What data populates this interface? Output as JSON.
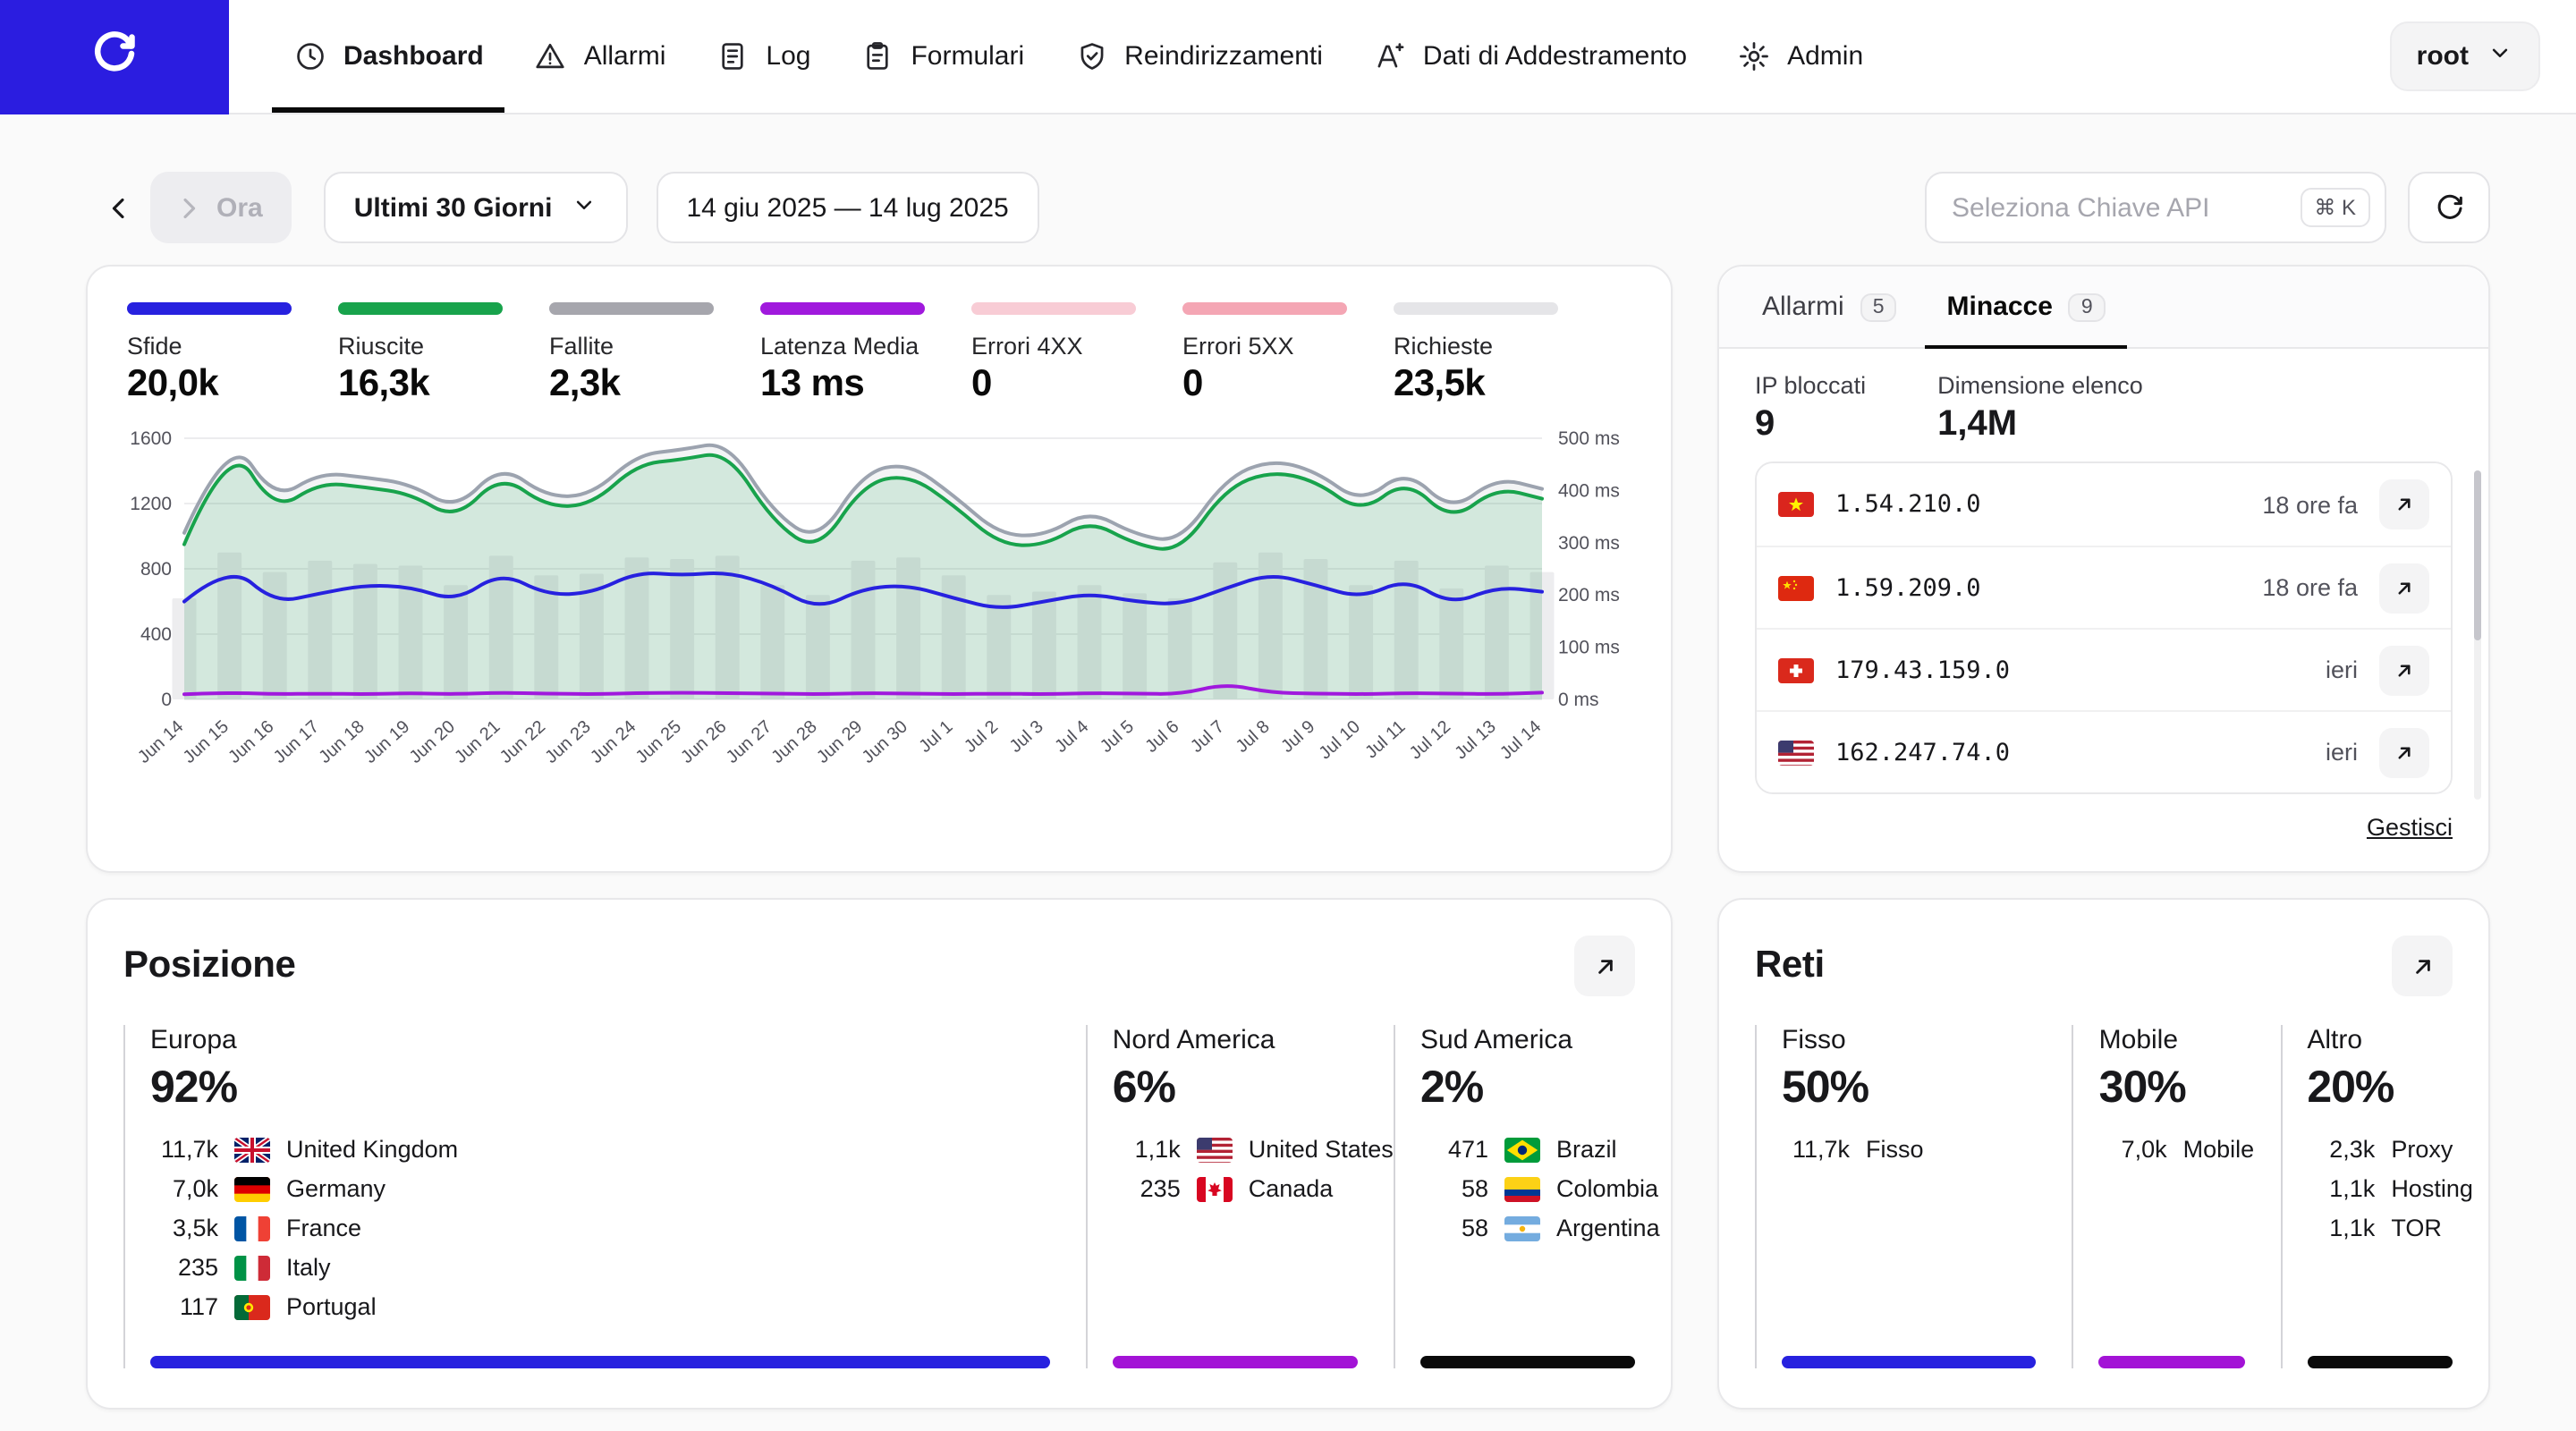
{
  "nav": {
    "items": [
      {
        "id": "dashboard",
        "label": "Dashboard",
        "icon": "clock",
        "active": true
      },
      {
        "id": "allarmi",
        "label": "Allarmi",
        "icon": "warning",
        "active": false
      },
      {
        "id": "log",
        "label": "Log",
        "icon": "log",
        "active": false
      },
      {
        "id": "formulari",
        "label": "Formulari",
        "icon": "clipboard",
        "active": false
      },
      {
        "id": "reindirizzamenti",
        "label": "Reindirizzamenti",
        "icon": "shield",
        "active": false
      },
      {
        "id": "dati-di-addestramento",
        "label": "Dati di Addestramento",
        "icon": "training",
        "active": false
      },
      {
        "id": "admin",
        "label": "Admin",
        "icon": "gear",
        "active": false
      }
    ],
    "user_label": "root"
  },
  "toolbar": {
    "now_label": "Ora",
    "period_label": "Ultimi 30 Giorni",
    "date_range": "14 giu 2025 — 14 lug 2025",
    "api_key_placeholder": "Seleziona Chiave API",
    "kbd_shortcut": "⌘ K"
  },
  "stats": [
    {
      "label": "Sfide",
      "value": "20,0k",
      "color": "#2721df"
    },
    {
      "label": "Riuscite",
      "value": "16,3k",
      "color": "#18a34c"
    },
    {
      "label": "Fallite",
      "value": "2,3k",
      "color": "#a6a6ad"
    },
    {
      "label": "Latenza Media",
      "value": "13 ms",
      "color": "#a019dd"
    },
    {
      "label": "Errori 4XX",
      "value": "0",
      "color": "#f8ccd5"
    },
    {
      "label": "Errori 5XX",
      "value": "0",
      "color": "#f4a6b4"
    },
    {
      "label": "Richieste",
      "value": "23,5k",
      "color": "#e5e5e8"
    }
  ],
  "chart_data": {
    "type": "line",
    "x_labels": [
      "Jun 14",
      "Jun 15",
      "Jun 16",
      "Jun 17",
      "Jun 18",
      "Jun 19",
      "Jun 20",
      "Jun 21",
      "Jun 22",
      "Jun 23",
      "Jun 24",
      "Jun 25",
      "Jun 26",
      "Jun 27",
      "Jun 28",
      "Jun 29",
      "Jun 30",
      "Jul 1",
      "Jul 2",
      "Jul 3",
      "Jul 4",
      "Jul 5",
      "Jul 6",
      "Jul 7",
      "Jul 8",
      "Jul 9",
      "Jul 10",
      "Jul 11",
      "Jul 12",
      "Jul 13",
      "Jul 14"
    ],
    "left_axis": {
      "max": 1600,
      "ticks": [
        0,
        400,
        800,
        1200,
        1600
      ]
    },
    "right_axis": {
      "max": 500,
      "ticks": [
        0,
        100,
        200,
        300,
        400,
        500
      ],
      "unit": "ms"
    },
    "legend_position": "top",
    "grid": true,
    "series": [
      {
        "name": "Richieste (barre)",
        "type": "bar",
        "axis": "left",
        "color": "#ededef",
        "values": [
          620,
          900,
          780,
          850,
          830,
          820,
          700,
          880,
          760,
          770,
          870,
          860,
          880,
          700,
          640,
          850,
          870,
          760,
          640,
          660,
          700,
          650,
          620,
          840,
          900,
          860,
          700,
          850,
          680,
          820,
          780
        ]
      },
      {
        "name": "Richieste",
        "type": "area",
        "axis": "left",
        "color": "#9ca3af",
        "fill": "rgba(156,163,175,0.12)",
        "values": [
          1020,
          1640,
          1220,
          1390,
          1360,
          1320,
          1160,
          1440,
          1240,
          1250,
          1500,
          1530,
          1580,
          1150,
          960,
          1390,
          1450,
          1250,
          1010,
          1000,
          1160,
          1010,
          960,
          1350,
          1470,
          1400,
          1200,
          1410,
          1150,
          1360,
          1290
        ]
      },
      {
        "name": "Riuscite",
        "type": "area",
        "axis": "left",
        "color": "#18a34c",
        "fill": "rgba(24,163,76,0.14)",
        "values": [
          950,
          1600,
          1150,
          1330,
          1300,
          1260,
          1100,
          1380,
          1180,
          1190,
          1440,
          1470,
          1520,
          1090,
          900,
          1320,
          1380,
          1190,
          950,
          940,
          1100,
          950,
          900,
          1290,
          1400,
          1340,
          1140,
          1350,
          1090,
          1300,
          1230
        ]
      },
      {
        "name": "Sfide",
        "type": "line",
        "axis": "left",
        "color": "#2721df",
        "values": [
          600,
          830,
          590,
          650,
          700,
          690,
          600,
          780,
          640,
          650,
          780,
          760,
          780,
          700,
          550,
          680,
          700,
          620,
          550,
          600,
          650,
          600,
          580,
          680,
          770,
          700,
          620,
          740,
          580,
          690,
          660
        ]
      },
      {
        "name": "Latenza Media",
        "type": "line",
        "axis": "right",
        "color": "#a019dd",
        "values": [
          10,
          13,
          10,
          11,
          10,
          12,
          10,
          13,
          11,
          10,
          12,
          13,
          12,
          11,
          10,
          12,
          11,
          10,
          11,
          10,
          12,
          11,
          10,
          30,
          13,
          11,
          10,
          12,
          11,
          10,
          13
        ]
      }
    ]
  },
  "threats": {
    "tabs": [
      {
        "id": "allarmi",
        "label": "Allarmi",
        "badge": "5",
        "active": false
      },
      {
        "id": "minacce",
        "label": "Minacce",
        "badge": "9",
        "active": true
      }
    ],
    "metrics": [
      {
        "label": "IP bloccati",
        "value": "9"
      },
      {
        "label": "Dimensione elenco",
        "value": "1,4M"
      }
    ],
    "rows": [
      {
        "flag": "vn",
        "ip": "1.54.210.0",
        "time": "18 ore fa"
      },
      {
        "flag": "cn",
        "ip": "1.59.209.0",
        "time": "18 ore fa"
      },
      {
        "flag": "ch",
        "ip": "179.43.159.0",
        "time": "ieri"
      },
      {
        "flag": "us",
        "ip": "162.247.74.0",
        "time": "ieri"
      }
    ],
    "manage_label": "Gestisci"
  },
  "posizione": {
    "title": "Posizione",
    "groups": [
      {
        "name": "Europa",
        "pct": "92%",
        "bar_color": "#2721df",
        "rows": [
          {
            "count": "11,7k",
            "flag": "gb",
            "label": "United Kingdom"
          },
          {
            "count": "7,0k",
            "flag": "de",
            "label": "Germany"
          },
          {
            "count": "3,5k",
            "flag": "fr",
            "label": "France"
          },
          {
            "count": "235",
            "flag": "it",
            "label": "Italy"
          },
          {
            "count": "117",
            "flag": "pt",
            "label": "Portugal"
          }
        ]
      },
      {
        "name": "Nord America",
        "pct": "6%",
        "bar_color": "#a313d6",
        "rows": [
          {
            "count": "1,1k",
            "flag": "us",
            "label": "United States"
          },
          {
            "count": "235",
            "flag": "ca",
            "label": "Canada"
          }
        ]
      },
      {
        "name": "Sud America",
        "pct": "2%",
        "bar_color": "#0a0a0a",
        "rows": [
          {
            "count": "471",
            "flag": "br",
            "label": "Brazil"
          },
          {
            "count": "58",
            "flag": "co",
            "label": "Colombia"
          },
          {
            "count": "58",
            "flag": "ar",
            "label": "Argentina"
          }
        ]
      }
    ]
  },
  "reti": {
    "title": "Reti",
    "groups": [
      {
        "name": "Fisso",
        "pct": "50%",
        "bar_color": "#2721df",
        "rows": [
          {
            "count": "11,7k",
            "label": "Fisso"
          }
        ]
      },
      {
        "name": "Mobile",
        "pct": "30%",
        "bar_color": "#a313d6",
        "rows": [
          {
            "count": "7,0k",
            "label": "Mobile"
          }
        ]
      },
      {
        "name": "Altro",
        "pct": "20%",
        "bar_color": "#0a0a0a",
        "rows": [
          {
            "count": "2,3k",
            "label": "Proxy"
          },
          {
            "count": "1,1k",
            "label": "Hosting"
          },
          {
            "count": "1,1k",
            "label": "TOR"
          }
        ]
      }
    ]
  }
}
